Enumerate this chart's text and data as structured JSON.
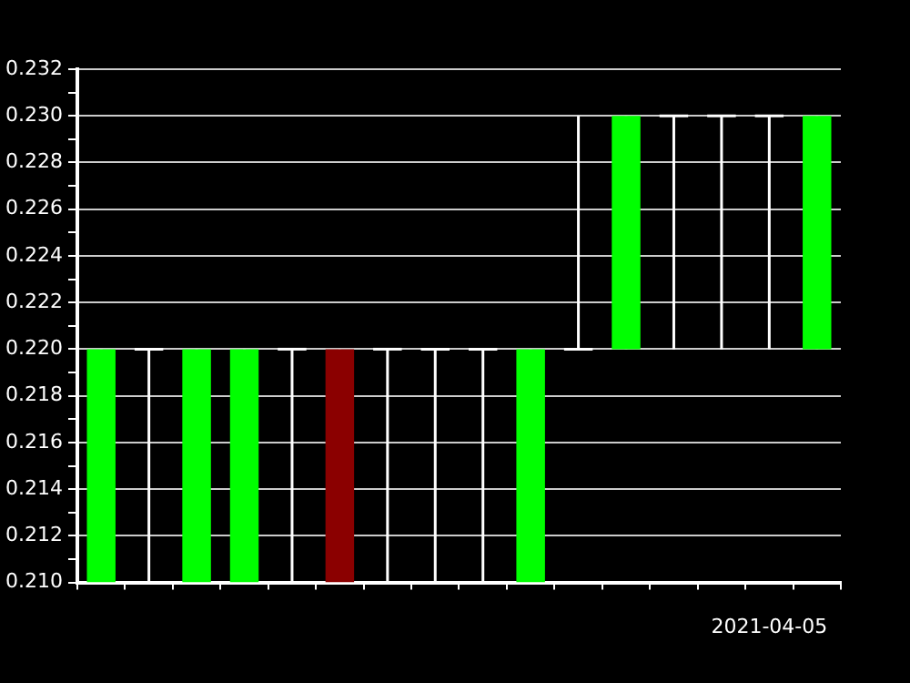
{
  "chart_data": {
    "type": "candlestick",
    "categories": [
      null,
      null,
      null,
      null,
      null,
      null,
      null,
      null,
      null,
      null,
      null,
      null,
      null,
      null,
      "2021-04-05",
      null
    ],
    "ohlc": [
      [
        0.21,
        0.22,
        0.21,
        0.22
      ],
      [
        0.22,
        0.22,
        0.21,
        0.22
      ],
      [
        0.21,
        0.22,
        0.21,
        0.22
      ],
      [
        0.21,
        0.22,
        0.21,
        0.22
      ],
      [
        0.22,
        0.22,
        0.21,
        0.22
      ],
      [
        0.22,
        0.22,
        0.21,
        0.21
      ],
      [
        0.22,
        0.22,
        0.21,
        0.22
      ],
      [
        0.22,
        0.22,
        0.21,
        0.22
      ],
      [
        0.22,
        0.22,
        0.21,
        0.22
      ],
      [
        0.21,
        0.22,
        0.21,
        0.22
      ],
      [
        0.22,
        0.23,
        0.22,
        0.22
      ],
      [
        0.22,
        0.23,
        0.22,
        0.23
      ],
      [
        0.23,
        0.23,
        0.22,
        0.23
      ],
      [
        0.23,
        0.23,
        0.22,
        0.23
      ],
      [
        0.23,
        0.23,
        0.22,
        0.23
      ],
      [
        0.22,
        0.23,
        0.22,
        0.23
      ]
    ],
    "ylim": [
      0.21,
      0.232
    ],
    "yticks": [
      {
        "value": 0.21,
        "label": "0.210"
      },
      {
        "value": 0.211,
        "label": null
      },
      0.212,
      {
        "value": 0.213,
        "label": null
      },
      0.214,
      {
        "value": 0.215,
        "label": null
      },
      0.216,
      {
        "value": 0.217,
        "label": null
      },
      0.218,
      {
        "value": 0.219,
        "label": null
      },
      {
        "value": 0.22,
        "label": "0.220"
      },
      {
        "value": 0.221,
        "label": null
      },
      0.222,
      {
        "value": 0.223,
        "label": null
      },
      0.224,
      {
        "value": 0.225,
        "label": null
      },
      0.226,
      {
        "value": 0.227,
        "label": null
      },
      0.228,
      {
        "value": 0.229,
        "label": null
      },
      {
        "value": 0.23,
        "label": "0.230"
      },
      {
        "value": 0.231,
        "label": null
      },
      0.232
    ],
    "grid": "y",
    "legend": false
  }
}
